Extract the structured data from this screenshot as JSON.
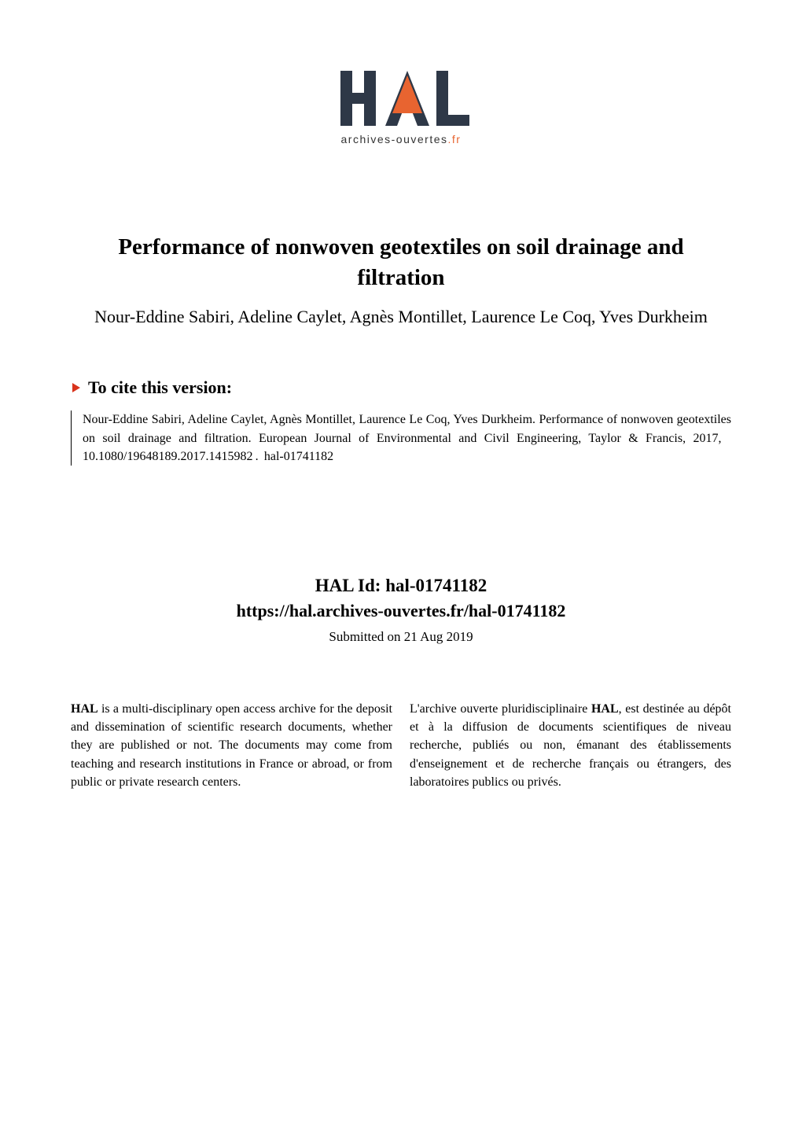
{
  "logo": {
    "top_text": "HAL",
    "subtitle_prefix": "archives-ouvertes",
    "subtitle_suffix": ".fr",
    "colors": {
      "dark": "#2e3847",
      "orange": "#e86430",
      "text": "#333333"
    }
  },
  "title": "Performance of nonwoven geotextiles on soil drainage and filtration",
  "authors": "Nour-Eddine Sabiri, Adeline Caylet, Agnès Montillet, Laurence Le Coq, Yves Durkheim",
  "cite": {
    "heading": "To cite this version:",
    "marker_color": "#d9331c",
    "text": "Nour-Eddine Sabiri, Adeline Caylet, Agnès Montillet, Laurence Le Coq, Yves Durkheim. Performance of nonwoven geotextiles on soil drainage and filtration. European Journal of Environmental and Civil Engineering, Taylor & Francis, 2017,  10.1080/19648189.2017.1415982 .  hal-01741182"
  },
  "hal": {
    "id_label": "HAL Id: hal-01741182",
    "url": "https://hal.archives-ouvertes.fr/hal-01741182",
    "submitted": "Submitted on 21 Aug 2019"
  },
  "description": {
    "left": "HAL is a multi-disciplinary open access archive for the deposit and dissemination of scientific research documents, whether they are published or not. The documents may come from teaching and research institutions in France or abroad, or from public or private research centers.",
    "right": "L'archive ouverte pluridisciplinaire HAL, est destinée au dépôt et à la diffusion de documents scientifiques de niveau recherche, publiés ou non, émanant des établissements d'enseignement et de recherche français ou étrangers, des laboratoires publics ou privés."
  },
  "description_html": {
    "left": "<b>HAL</b> is a multi-disciplinary open access archive for the deposit and dissemination of scientific research documents, whether they are published or not. The documents may come from teaching and research institutions in France or abroad, or from public or private research centers.",
    "right": "L'archive ouverte pluridisciplinaire <b>HAL</b>, est destinée au dépôt et à la diffusion de documents scientifiques de niveau recherche, publiés ou non, émanant des établissements d'enseignement et de recherche français ou étrangers, des laboratoires publics ou privés."
  }
}
